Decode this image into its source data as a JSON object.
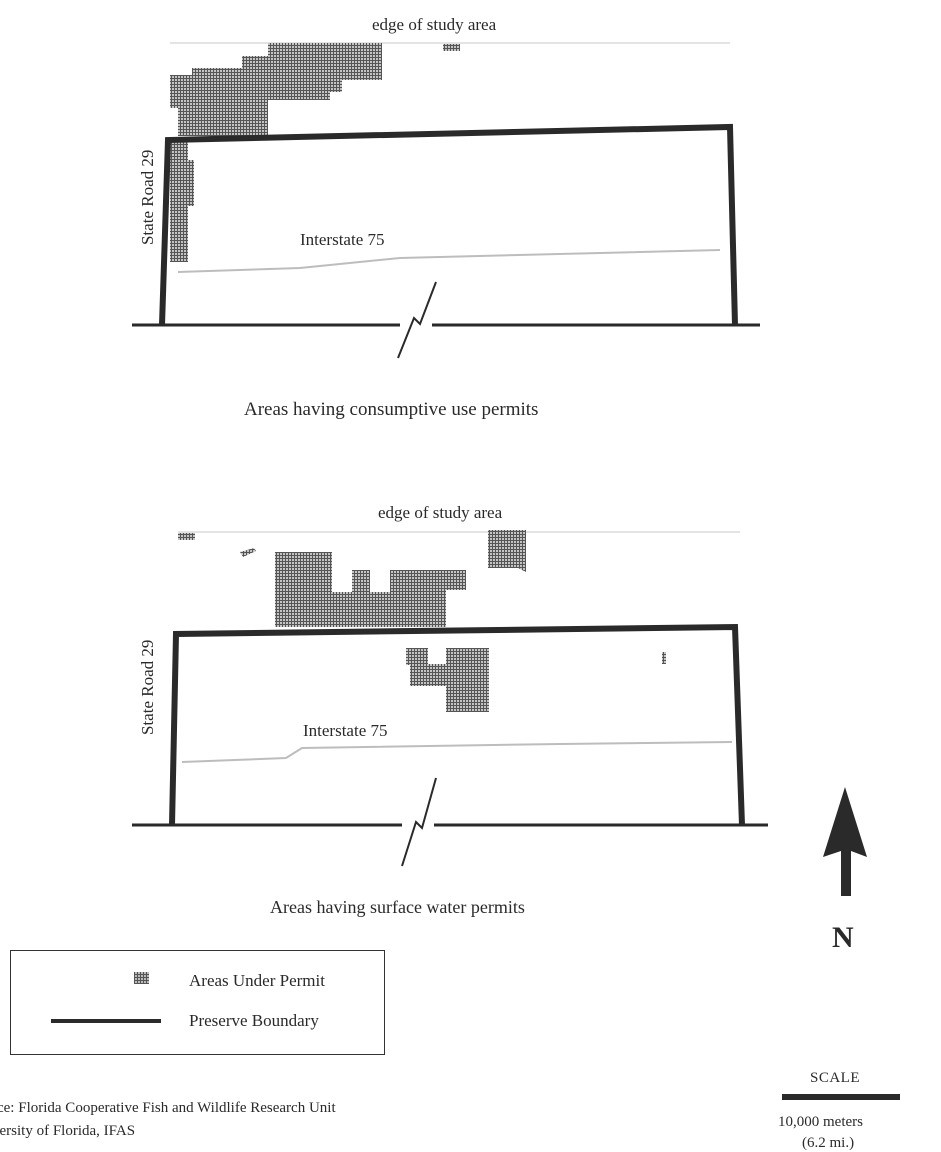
{
  "map_top": {
    "edge_label": "edge of study area",
    "road_label": "State Road 29",
    "interstate_label": "Interstate 75",
    "caption": "Areas having consumptive use permits"
  },
  "map_bottom": {
    "edge_label": "edge of study area",
    "road_label": "State Road 29",
    "interstate_label": "Interstate 75",
    "caption": "Areas having surface water permits"
  },
  "north_arrow": {
    "label": "N"
  },
  "legend": {
    "permit_label": "Areas Under Permit",
    "boundary_label": "Preserve Boundary"
  },
  "scale": {
    "title": "SCALE",
    "distance": "10,000 meters",
    "miles": "(6.2 mi.)"
  },
  "source": {
    "line1": "rce: Florida Cooperative Fish and Wildlife Research Unit",
    "line2": "versity of Florida, IFAS"
  },
  "colors": {
    "ink": "#2a2a2a",
    "permit_fill": "#bbbbbb",
    "permit_grid": "#555555"
  }
}
